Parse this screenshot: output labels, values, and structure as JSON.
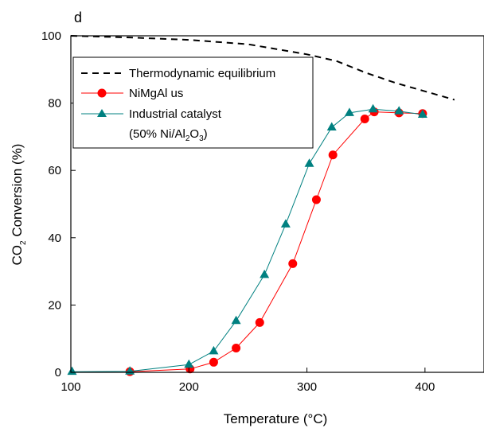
{
  "chart_data": {
    "type": "line",
    "panel_label": "d",
    "xlabel": "Temperature (°C)",
    "ylabel": "CO2 Conversion (%)",
    "ylabel_parts": {
      "pre": "CO",
      "sub": "2",
      "post": " Conversion (%)"
    },
    "xlim": [
      100,
      450
    ],
    "ylim": [
      0,
      100
    ],
    "xticks": [
      100,
      200,
      300,
      400
    ],
    "yticks": [
      0,
      20,
      40,
      60,
      80,
      100
    ],
    "grid": false,
    "legend_position": "top-left",
    "series": [
      {
        "name": "Thermodynamic equilibrium",
        "style": "dashed",
        "marker": "none",
        "color": "#000000",
        "x": [
          100,
          150,
          200,
          250,
          300,
          325,
          350,
          375,
          400,
          425
        ],
        "y": [
          100,
          99.5,
          98.8,
          97.5,
          94.5,
          92.5,
          89,
          86,
          83.5,
          81
        ]
      },
      {
        "name": "NiMgAl us",
        "style": "solid",
        "marker": "circle",
        "color": "#ff0000",
        "x": [
          150,
          201,
          221,
          240,
          260,
          288,
          308,
          322,
          349,
          357,
          378,
          398
        ],
        "y": [
          0.2,
          1.0,
          3.0,
          7.2,
          14.8,
          32.3,
          51.3,
          64.6,
          75.3,
          77.4,
          77.1,
          76.9
        ]
      },
      {
        "name": "Industrial catalyst",
        "name_line2_parts": {
          "a": "(50% Ni/Al",
          "sub1": "2",
          "b": "O",
          "sub2": "3",
          "c": ")"
        },
        "style": "solid",
        "marker": "triangle",
        "color": "#008080",
        "x": [
          101,
          150,
          200,
          221,
          240,
          264,
          282,
          302,
          321,
          336,
          356,
          378,
          398
        ],
        "y": [
          0.2,
          0.3,
          2.3,
          6.3,
          15.3,
          29.0,
          44.0,
          62.0,
          72.8,
          77.1,
          78.2,
          77.6,
          76.6
        ]
      }
    ]
  }
}
